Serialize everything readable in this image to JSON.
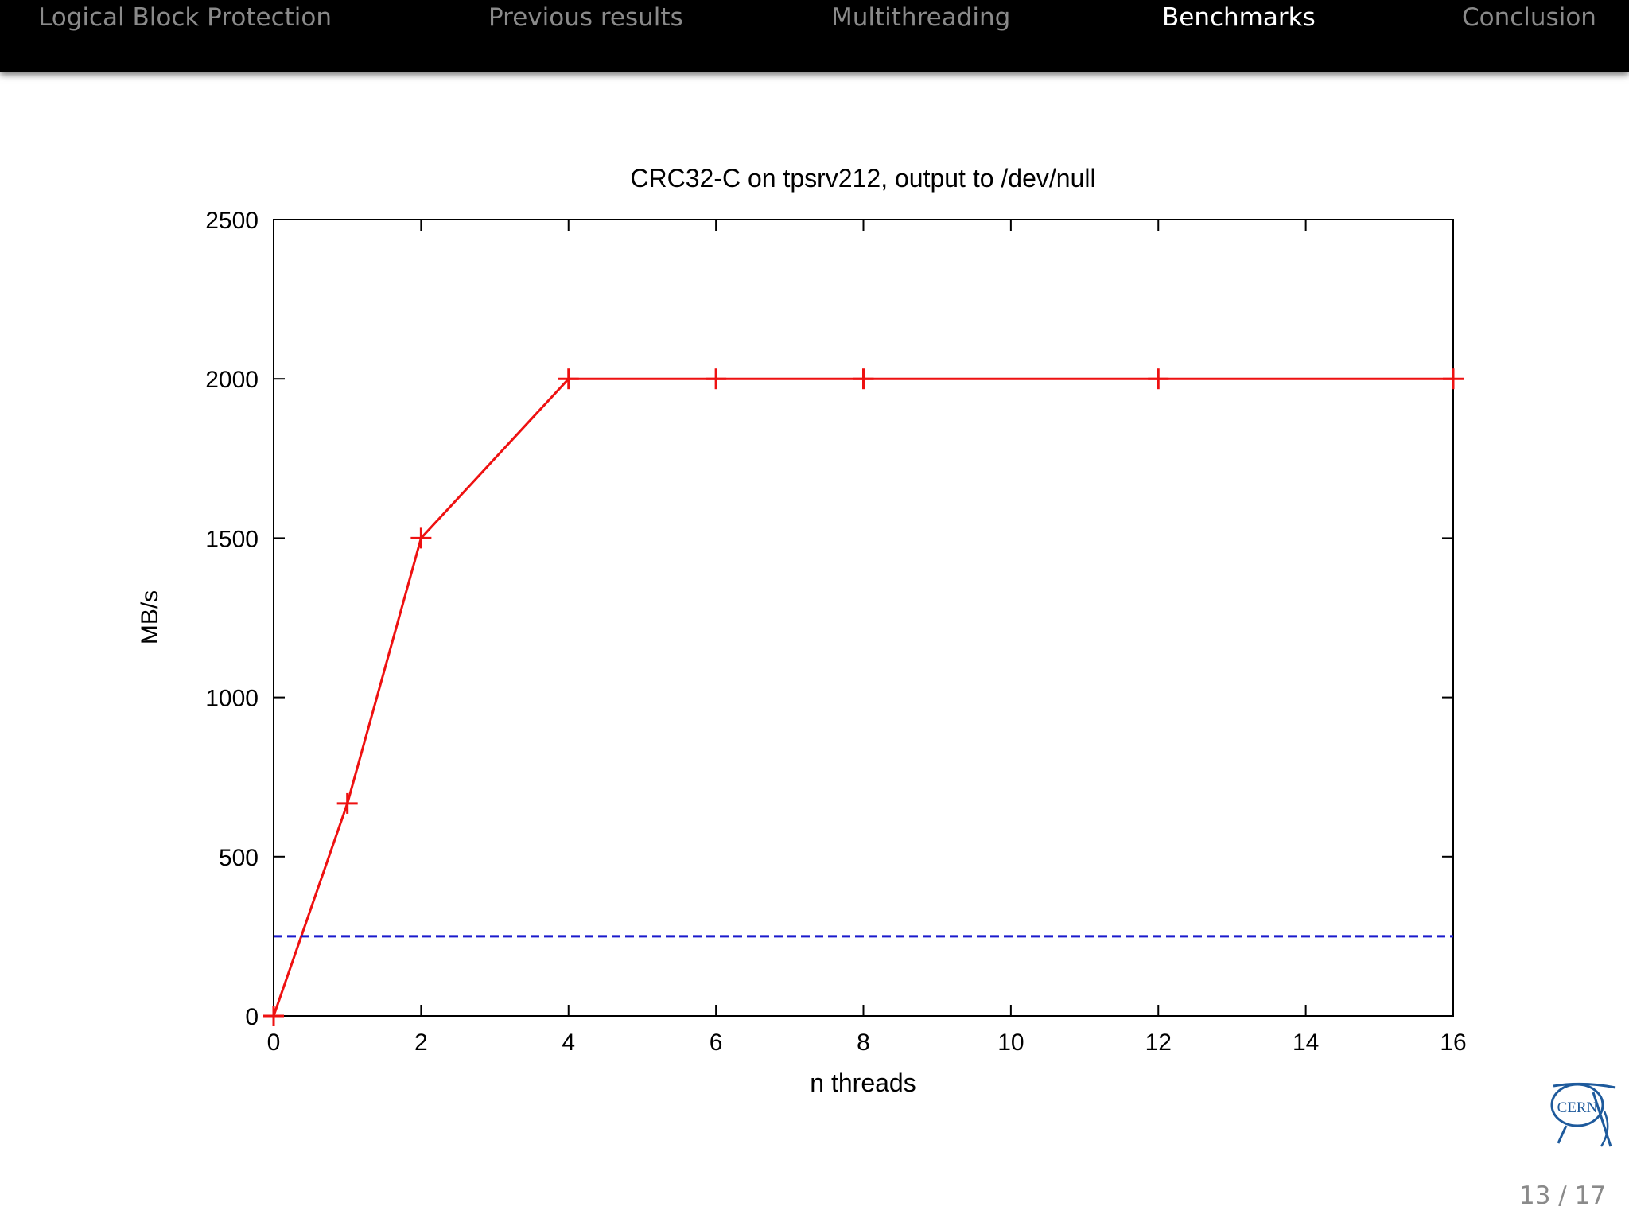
{
  "nav": {
    "items": [
      {
        "label": "Logical Block Protection"
      },
      {
        "label": "Previous results"
      },
      {
        "label": "Multithreading"
      },
      {
        "label": "Benchmarks"
      },
      {
        "label": "Conclusion"
      }
    ],
    "active_index": 3,
    "active_color": "#ffffff",
    "inactive_color": "#8a8a8a"
  },
  "chart_data": {
    "type": "line",
    "title": "CRC32-C on tpsrv212, output to /dev/null",
    "xlabel": "n threads",
    "ylabel": "MB/s",
    "xlim": [
      0,
      16
    ],
    "ylim": [
      0,
      2500
    ],
    "xticks": [
      0,
      2,
      4,
      6,
      8,
      10,
      12,
      14,
      16
    ],
    "yticks": [
      0,
      500,
      1000,
      1500,
      2000,
      2500
    ],
    "grid": false,
    "series": [
      {
        "color": "#ee1111",
        "style": "solid",
        "marker": "plus",
        "points": [
          [
            0,
            0
          ],
          [
            1,
            667
          ],
          [
            2,
            1500
          ],
          [
            4,
            2000
          ],
          [
            6,
            2000
          ],
          [
            8,
            2000
          ],
          [
            12,
            2000
          ],
          [
            16,
            2000
          ]
        ]
      },
      {
        "color": "#1a1acc",
        "style": "dashed",
        "marker": "none",
        "points": [
          [
            0,
            250
          ],
          [
            16,
            250
          ]
        ]
      }
    ]
  },
  "footer": {
    "logo_text": "CERN",
    "page_number": "13 / 17"
  }
}
